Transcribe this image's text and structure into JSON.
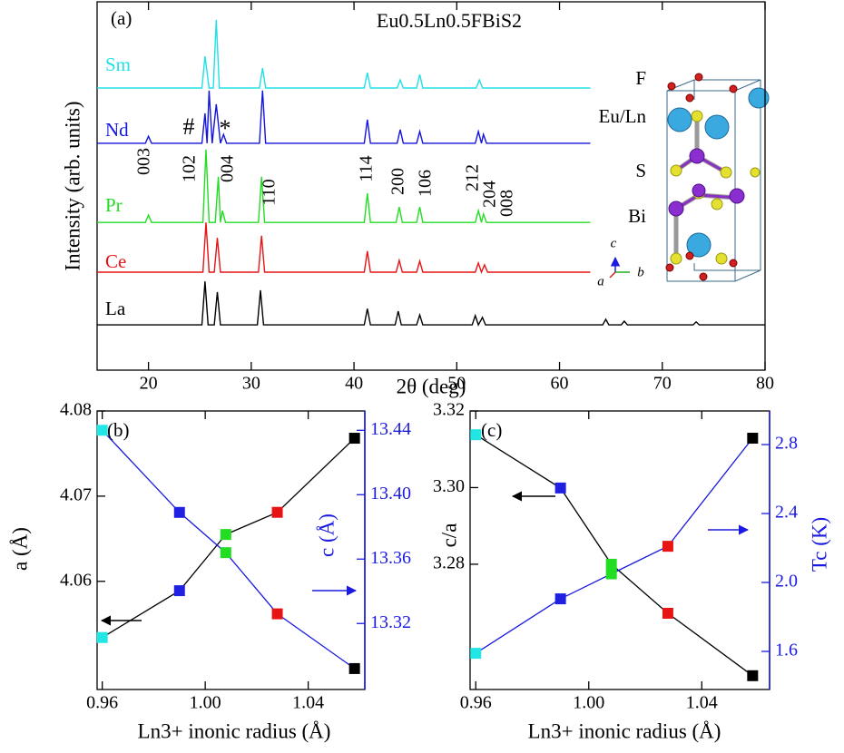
{
  "chart_data": [
    {
      "type": "line",
      "title": "(a)",
      "subtitle": "Eu0.5Ln0.5FBiS2",
      "xlabel": "2θ (deg)",
      "ylabel": "Intensity (arb. units)",
      "xlim": [
        15,
        80
      ],
      "xticks": [
        20,
        30,
        40,
        50,
        60,
        70,
        80
      ],
      "ylim": [
        0,
        100
      ],
      "annotations": [
        "003",
        "102",
        "004",
        "110",
        "114",
        "200",
        "106",
        "212",
        "204",
        "008",
        "#",
        "*"
      ],
      "inset_labels": [
        "F",
        "Eu/Ln",
        "S",
        "Bi",
        "c",
        "b",
        "a"
      ],
      "series": [
        {
          "name": "Sm",
          "color": "#22e0e6",
          "x": [
            15,
            25.2,
            25.5,
            25.9,
            26.3,
            26.6,
            26.9,
            30.8,
            31.1,
            31.4,
            41.0,
            41.3,
            41.6,
            44.2,
            44.5,
            44.8,
            46.1,
            46.4,
            46.7,
            51.9,
            52.2,
            52.5,
            63,
            79.5,
            80
          ],
          "values": [
            76.6,
            76.6,
            85.2,
            76.6,
            76.6,
            95.1,
            76.6,
            76.6,
            82,
            76.6,
            76.6,
            80.8,
            76.6,
            76.6,
            78.8,
            76.6,
            76.6,
            80.3,
            76.6,
            76.6,
            78.8,
            76.6,
            76.6,
            null,
            76.6
          ]
        },
        {
          "name": "Nd",
          "color": "#1414dc",
          "x": [
            15,
            19.7,
            20.0,
            20.3,
            25.2,
            25.5,
            25.7,
            25.9,
            26.2,
            26.6,
            27.0,
            27.3,
            27.6,
            30.8,
            31.1,
            31.4,
            41.0,
            41.3,
            41.6,
            44.2,
            44.5,
            44.8,
            46.1,
            46.4,
            46.7,
            51.8,
            52.1,
            52.4,
            52.6,
            52.9,
            63,
            79.5,
            80
          ],
          "values": [
            61.6,
            61.6,
            63.5,
            61.6,
            61.6,
            69.7,
            61.6,
            75.9,
            61.6,
            72.2,
            61.6,
            64,
            61.6,
            61.6,
            75.9,
            61.6,
            61.6,
            68,
            61.6,
            61.6,
            65.3,
            61.6,
            61.6,
            64.8,
            61.6,
            61.6,
            64.8,
            61.6,
            64,
            61.6,
            61.6,
            null,
            61.6
          ]
        },
        {
          "name": "Pr",
          "color": "#22dd22",
          "x": [
            15,
            19.7,
            20.0,
            20.3,
            25.3,
            25.6,
            25.9,
            26.5,
            26.8,
            27.0,
            27.2,
            27.5,
            30.7,
            31.0,
            31.3,
            41.0,
            41.3,
            41.6,
            44.1,
            44.4,
            44.7,
            46.1,
            46.4,
            46.7,
            51.8,
            52.1,
            52.4,
            52.6,
            52.9,
            63,
            79.5,
            80
          ],
          "values": [
            40.1,
            40.1,
            42.1,
            40.1,
            40.1,
            59.9,
            40.1,
            40.1,
            52.5,
            40.1,
            43.3,
            40.1,
            40.1,
            52.5,
            40.1,
            40.1,
            48,
            40.1,
            40.1,
            44.3,
            40.1,
            40.1,
            44.3,
            40.1,
            40.1,
            43.3,
            40.1,
            42.4,
            40.1,
            40.1,
            null,
            40.1
          ]
        },
        {
          "name": "Ce",
          "color": "#e61414",
          "x": [
            15,
            25.3,
            25.6,
            25.9,
            26.4,
            26.7,
            27.0,
            30.7,
            31.0,
            31.3,
            41.0,
            41.3,
            41.6,
            44.1,
            44.4,
            44.7,
            46.1,
            46.4,
            46.7,
            51.8,
            52.1,
            52.4,
            52.7,
            53.0,
            63,
            79.5,
            80
          ],
          "values": [
            26.6,
            26.6,
            40.1,
            26.6,
            26.6,
            35.9,
            26.6,
            26.6,
            36.5,
            26.6,
            26.6,
            32.3,
            26.6,
            26.6,
            29.8,
            26.6,
            26.6,
            29.6,
            26.6,
            26.6,
            29.1,
            26.6,
            28.6,
            26.6,
            26.6,
            null,
            26.6
          ]
        },
        {
          "name": "La",
          "color": "#000000",
          "x": [
            15,
            25.2,
            25.5,
            25.8,
            26.4,
            26.7,
            27.0,
            30.6,
            30.9,
            31.2,
            41.0,
            41.3,
            41.6,
            44.0,
            44.3,
            44.6,
            46.1,
            46.4,
            46.7,
            51.5,
            51.8,
            52.1,
            52.5,
            52.8,
            64.2,
            64.5,
            64.8,
            66.0,
            66.3,
            66.6,
            73.0,
            73.3,
            73.6,
            80
          ],
          "values": [
            12.3,
            12.3,
            24.1,
            12.3,
            12.3,
            21.2,
            12.3,
            12.3,
            21.7,
            12.3,
            12.3,
            16.7,
            12.3,
            12.3,
            16,
            12.3,
            12.3,
            15,
            12.3,
            12.3,
            14.8,
            12.3,
            14.3,
            12.3,
            12.3,
            13.8,
            12.3,
            12.3,
            13.3,
            12.3,
            12.3,
            13.1,
            12.3,
            12.3
          ]
        }
      ]
    },
    {
      "type": "line",
      "title": "(b)",
      "xlabel": "Ln3+ inonic radius (Å)",
      "ylabel": "a (Å)",
      "y2label": "c (Å)",
      "xlim": [
        0.958,
        1.062
      ],
      "xticks": [
        0.96,
        {
          "value": 1,
          "label": "1.00"
        },
        1.04
      ],
      "ylim": [
        4.0473,
        4.08
      ],
      "yticks": [
        4.06,
        4.07,
        4.08
      ],
      "y2lim": [
        13.279,
        13.452
      ],
      "y2ticks": [
        13.32,
        13.36,
        {
          "value": 13.4,
          "label": "13.40"
        },
        13.44
      ],
      "x": [
        0.96,
        0.99,
        1.008,
        1.028,
        1.058
      ],
      "point_colors": [
        "#22e6e6",
        "#2020e0",
        "#22dd22",
        "#e61414",
        "#000000"
      ],
      "series": [
        {
          "color": "#000000",
          "values": [
            4.0534,
            4.0589,
            4.0655,
            4.0681,
            4.0768
          ]
        },
        {
          "color": "#1a1ae0",
          "axis": "y2",
          "values": [
            13.44,
            13.389,
            13.364,
            13.326,
            13.292
          ]
        }
      ]
    },
    {
      "type": "line",
      "title": "(c)",
      "xlabel": "Ln3+ inonic radius (Å)",
      "ylabel": "c/a",
      "y2label": "Tc (K)",
      "xlim": [
        0.958,
        1.064
      ],
      "xticks": [
        0.96,
        {
          "value": 1,
          "label": "1.00"
        },
        1.04
      ],
      "ylim": [
        3.2473,
        3.32
      ],
      "yticks": [
        3.28,
        {
          "value": 3.3,
          "label": "3.30"
        },
        3.32
      ],
      "y2lim": [
        1.379,
        2.995
      ],
      "y2ticks": [
        1.6,
        {
          "value": 2,
          "label": "2.0"
        },
        2.4,
        2.8
      ],
      "x": [
        0.96,
        0.99,
        1.008,
        1.028,
        1.058
      ],
      "point_colors": [
        "#22e6e6",
        "#2020e0",
        "#22dd22",
        "#e61414",
        "#000000"
      ],
      "series": [
        {
          "color": "#000000",
          "values": [
            3.3138,
            3.2999,
            3.28,
            3.2672,
            3.2509
          ]
        },
        {
          "color": "#1a1ae0",
          "axis": "y2",
          "values": [
            1.589,
            1.905,
            2.05,
            2.21,
            2.837
          ]
        }
      ]
    }
  ]
}
